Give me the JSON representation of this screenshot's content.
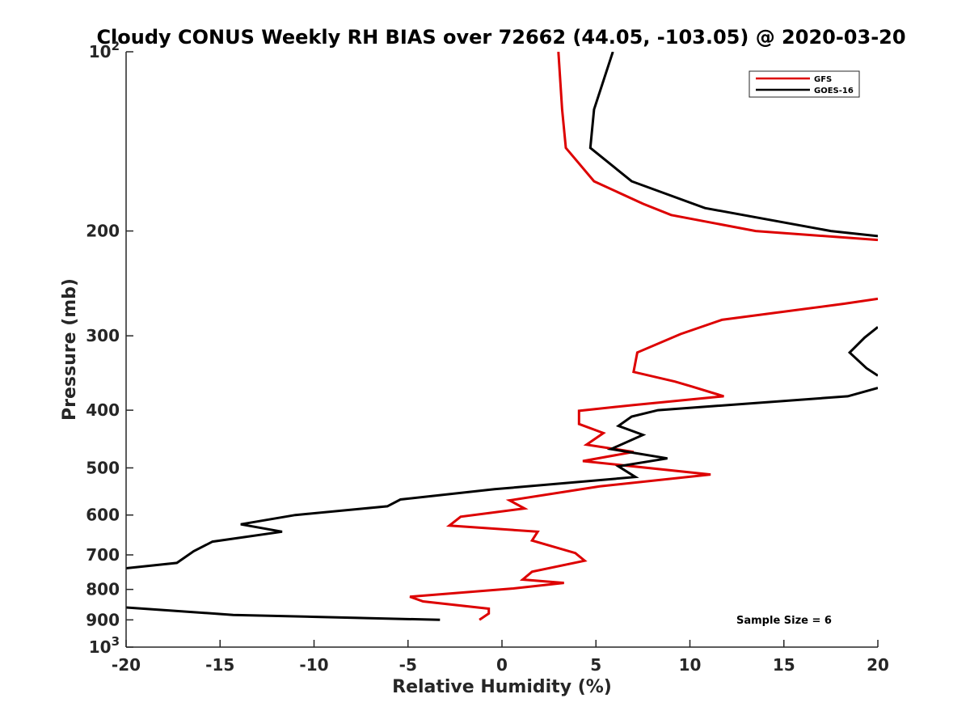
{
  "chart_data": {
    "type": "line",
    "title": "Cloudy CONUS Weekly RH BIAS over 72662 (44.05, -103.05) @ 2020-03-20",
    "xlabel": "Relative Humidity (%)",
    "ylabel": "Pressure (mb)",
    "xlim": [
      -20,
      20
    ],
    "ylim": [
      100,
      1000
    ],
    "yscale": "log",
    "yreversed": true,
    "x_ticks": [
      "-20",
      "-15",
      "-10",
      "-5",
      "0",
      "5",
      "10",
      "15",
      "20"
    ],
    "y_ticks": [
      {
        "value": 100,
        "base": "10",
        "exp": "2"
      },
      {
        "value": 200,
        "label": "200"
      },
      {
        "value": 300,
        "label": "300"
      },
      {
        "value": 400,
        "label": "400"
      },
      {
        "value": 500,
        "label": "500"
      },
      {
        "value": 600,
        "label": "600"
      },
      {
        "value": 700,
        "label": "700"
      },
      {
        "value": 800,
        "label": "800"
      },
      {
        "value": 900,
        "label": "900"
      },
      {
        "value": 1000,
        "base": "10",
        "exp": "3"
      }
    ],
    "legend_position": "top-right",
    "annotation": "Sample Size = 6",
    "series": [
      {
        "name": "GFS",
        "color": "#dd0000",
        "segments": [
          [
            [
              3.0,
              100
            ],
            [
              3.2,
              125
            ],
            [
              3.4,
              145
            ],
            [
              4.9,
              165
            ],
            [
              7.5,
              180
            ],
            [
              9.0,
              188
            ],
            [
              13.5,
              200
            ],
            [
              20.0,
              207
            ]
          ],
          [
            [
              20.0,
              260
            ],
            [
              18.2,
              265
            ],
            [
              11.7,
              282
            ],
            [
              9.5,
              298
            ],
            [
              7.2,
              320
            ],
            [
              7.0,
              345
            ],
            [
              9.2,
              358
            ],
            [
              10.1,
              365
            ],
            [
              11.8,
              379
            ],
            [
              7.0,
              392
            ],
            [
              4.1,
              401
            ],
            [
              4.1,
              422
            ],
            [
              5.4,
              437
            ],
            [
              4.5,
              457
            ],
            [
              7.0,
              470
            ],
            [
              4.3,
              487
            ],
            [
              11.1,
              513
            ],
            [
              5.2,
              537
            ],
            [
              0.4,
              567
            ],
            [
              1.2,
              585
            ],
            [
              -2.2,
              604
            ],
            [
              -2.8,
              625
            ],
            [
              1.9,
              640
            ],
            [
              1.6,
              662
            ],
            [
              3.9,
              695
            ],
            [
              4.4,
              716
            ],
            [
              1.6,
              747
            ],
            [
              1.1,
              770
            ],
            [
              3.3,
              780
            ],
            [
              0.6,
              797
            ],
            [
              -4.9,
              823
            ],
            [
              -4.2,
              838
            ],
            [
              -0.7,
              862
            ],
            [
              -0.7,
              878
            ],
            [
              -1.2,
              900
            ]
          ]
        ]
      },
      {
        "name": "GOES-16",
        "color": "#000000",
        "segments": [
          [
            [
              5.9,
              100
            ],
            [
              4.9,
              125
            ],
            [
              4.7,
              145
            ],
            [
              6.9,
              165
            ],
            [
              10.8,
              183
            ],
            [
              17.5,
              200
            ],
            [
              20.0,
              204
            ]
          ],
          [
            [
              20.0,
              290
            ],
            [
              19.3,
              302
            ],
            [
              18.5,
              320
            ],
            [
              19.4,
              340
            ],
            [
              20.0,
              350
            ]
          ],
          [
            [
              20.0,
              367
            ],
            [
              18.4,
              379
            ],
            [
              8.3,
              400
            ],
            [
              6.9,
              410
            ],
            [
              6.2,
              425
            ],
            [
              7.5,
              440
            ],
            [
              5.8,
              465
            ],
            [
              8.8,
              482
            ],
            [
              6.2,
              497
            ],
            [
              7.1,
              518
            ],
            [
              -0.4,
              543
            ],
            [
              -5.4,
              565
            ],
            [
              -6.1,
              580
            ],
            [
              -11.0,
              600
            ],
            [
              -13.9,
              622
            ],
            [
              -11.7,
              640
            ],
            [
              -15.4,
              665
            ],
            [
              -16.4,
              690
            ],
            [
              -17.3,
              722
            ],
            [
              -20.0,
              737
            ]
          ],
          [
            [
              -20.0,
              858
            ],
            [
              -14.3,
              883
            ],
            [
              -3.3,
              900
            ]
          ]
        ]
      }
    ]
  }
}
